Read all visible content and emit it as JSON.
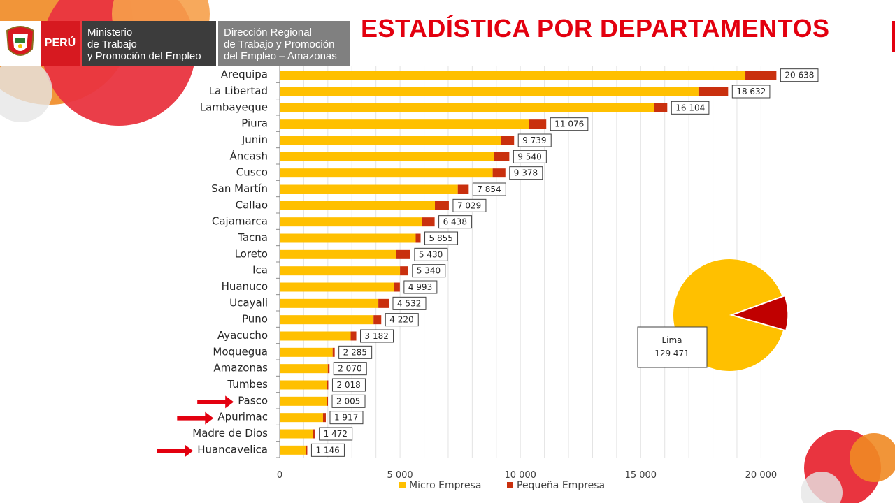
{
  "header": {
    "country": "PERÚ",
    "ministry_lines": [
      "Ministerio",
      "de Trabajo",
      "y Promoción del Empleo"
    ],
    "regional_lines": [
      "Dirección Regional",
      "de Trabajo y Promoción",
      "del Empleo – Amazonas"
    ]
  },
  "title": "ESTADÍSTICA POR DEPARTAMENTOS",
  "colors": {
    "micro": "#ffc000",
    "pequena": "#c9300e",
    "title": "#e3000f",
    "arrow": "#e3000f",
    "pie_micro": "#ffc000",
    "pie_pequena": "#c00000"
  },
  "chart_data": [
    {
      "type": "bar",
      "orientation": "horizontal",
      "stacked": true,
      "categories": [
        "Arequipa",
        "La Libertad",
        "Lambayeque",
        "Piura",
        "Junin",
        "Áncash",
        "Cusco",
        "San Martín",
        "Callao",
        "Cajamarca",
        "Tacna",
        "Loreto",
        "Ica",
        "Huanuco",
        "Ucayali",
        "Puno",
        "Ayacucho",
        "Moquegua",
        "Amazonas",
        "Tumbes",
        "Pasco",
        "Apurimac",
        "Madre de Dios",
        "Huancavelica"
      ],
      "series": [
        {
          "name": "Micro Empresa",
          "values": [
            19350,
            17400,
            15550,
            10350,
            9200,
            8900,
            8850,
            7400,
            6450,
            5900,
            5650,
            4850,
            5000,
            4750,
            4100,
            3900,
            2950,
            2200,
            2000,
            1950,
            1950,
            1800,
            1380,
            1100
          ]
        },
        {
          "name": "Pequeña Empresa",
          "values": [
            1288,
            1232,
            554,
            726,
            539,
            640,
            528,
            454,
            579,
            538,
            205,
            580,
            340,
            243,
            432,
            320,
            232,
            85,
            70,
            68,
            55,
            117,
            92,
            46
          ]
        }
      ],
      "totals": [
        20638,
        18632,
        16104,
        11076,
        9739,
        9540,
        9378,
        7854,
        7029,
        6438,
        5855,
        5430,
        5340,
        4993,
        4532,
        4220,
        3182,
        2285,
        2070,
        2018,
        2005,
        1917,
        1472,
        1146
      ],
      "total_labels": [
        "20 638",
        "18 632",
        "16 104",
        "11 076",
        "9 739",
        "9 540",
        "9 378",
        "7 854",
        "7 029",
        "6 438",
        "5 855",
        "5 430",
        "5 340",
        "4 993",
        "4 532",
        "4 220",
        "3 182",
        "2 285",
        "2 070",
        "2 018",
        "2 005",
        "1 917",
        "1 472",
        "1 146"
      ],
      "xlim": [
        0,
        21000
      ],
      "xticks": [
        0,
        5000,
        10000,
        15000,
        20000
      ],
      "xtick_labels": [
        "0",
        "5 000",
        "10 000",
        "15 000",
        "20 000"
      ],
      "grid": true,
      "legend": {
        "position": "bottom",
        "entries": [
          "Micro Empresa",
          "Pequeña Empresa"
        ]
      },
      "highlighted_categories": [
        "Pasco",
        "Apurimac",
        "Huancavelica"
      ]
    },
    {
      "type": "pie",
      "slices": [
        {
          "name": "Micro Empresa",
          "value": 0.9
        },
        {
          "name": "Pequeña Empresa",
          "value": 0.1
        }
      ],
      "label": "Lima",
      "total_label": "129 471"
    }
  ]
}
